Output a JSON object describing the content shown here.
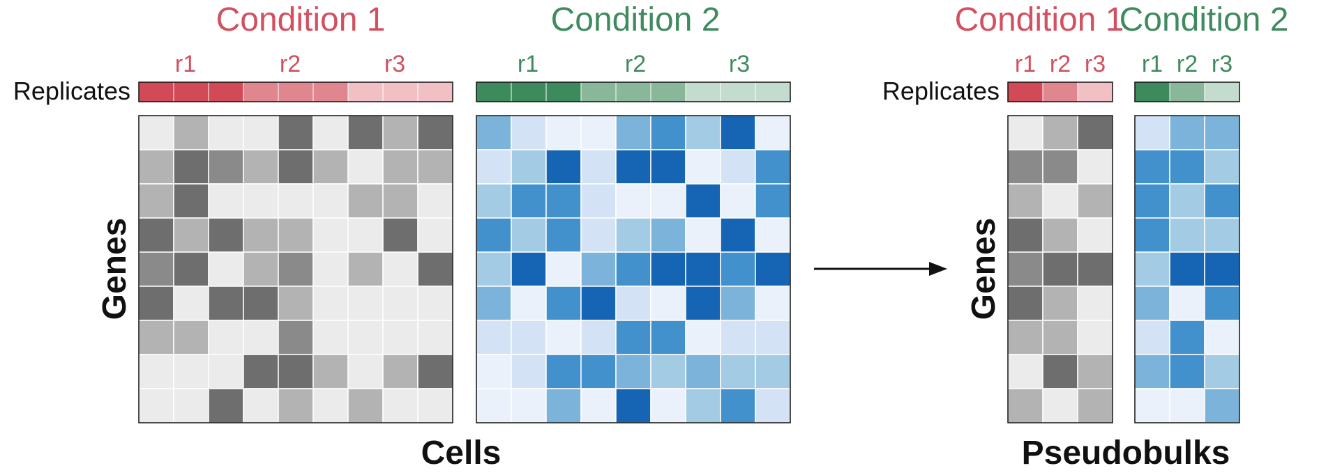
{
  "colors": {
    "condition1": "#d2505f",
    "condition2": "#3f8a5f",
    "arrow": "#111111",
    "border": "#111111",
    "grid": "#ffffff"
  },
  "palettes": {
    "gray": [
      "#ebebeb",
      "#b3b3b3",
      "#8a8a8a",
      "#6e6e6e"
    ],
    "blue": [
      "#eaf1fb",
      "#d3e2f4",
      "#a3cce4",
      "#7cb3da",
      "#4290cc",
      "#1565b4"
    ],
    "rep1": [
      "#d24a57",
      "#e0868f",
      "#f0c0c5"
    ],
    "rep2": [
      "#3d8a5d",
      "#88b79a",
      "#c3dccd"
    ]
  },
  "cells_panel": {
    "condition1": {
      "title": "Condition 1",
      "replicate_labels": [
        "r1",
        "r2",
        "r3"
      ],
      "replicate_bar": [
        0,
        0,
        0,
        1,
        1,
        1,
        2,
        2,
        2
      ],
      "matrix": [
        [
          0,
          1,
          0,
          0,
          3,
          0,
          3,
          1,
          3
        ],
        [
          1,
          3,
          2,
          1,
          3,
          1,
          0,
          1,
          1
        ],
        [
          1,
          3,
          0,
          0,
          0,
          0,
          1,
          1,
          0
        ],
        [
          3,
          1,
          3,
          1,
          1,
          0,
          0,
          3,
          0
        ],
        [
          2,
          3,
          0,
          1,
          2,
          0,
          1,
          0,
          3
        ],
        [
          3,
          0,
          3,
          3,
          1,
          0,
          0,
          0,
          0
        ],
        [
          1,
          1,
          0,
          0,
          2,
          0,
          0,
          0,
          0
        ],
        [
          0,
          0,
          0,
          3,
          3,
          1,
          0,
          1,
          3
        ],
        [
          0,
          0,
          3,
          0,
          1,
          0,
          1,
          0,
          0
        ]
      ]
    },
    "condition2": {
      "title": "Condition 2",
      "replicate_labels": [
        "r1",
        "r2",
        "r3"
      ],
      "replicate_bar": [
        0,
        0,
        0,
        1,
        1,
        1,
        2,
        2,
        2
      ],
      "matrix": [
        [
          3,
          1,
          0,
          0,
          3,
          4,
          2,
          5,
          0
        ],
        [
          1,
          2,
          5,
          1,
          5,
          5,
          0,
          1,
          4
        ],
        [
          2,
          4,
          4,
          1,
          0,
          0,
          5,
          0,
          4
        ],
        [
          4,
          2,
          4,
          1,
          2,
          3,
          0,
          5,
          0
        ],
        [
          2,
          5,
          0,
          3,
          4,
          5,
          5,
          4,
          5
        ],
        [
          3,
          0,
          4,
          5,
          1,
          0,
          5,
          3,
          0
        ],
        [
          1,
          1,
          0,
          1,
          4,
          4,
          0,
          1,
          1
        ],
        [
          0,
          1,
          4,
          4,
          3,
          2,
          3,
          2,
          2
        ],
        [
          0,
          0,
          3,
          0,
          5,
          0,
          2,
          4,
          1
        ]
      ]
    },
    "row_label": "Genes",
    "column_label": "Cells",
    "replicates_label": "Replicates"
  },
  "pseudobulk_panel": {
    "condition1": {
      "title": "Condition 1",
      "replicate_labels": [
        "r1",
        "r2",
        "r3"
      ],
      "replicate_bar": [
        0,
        1,
        2
      ],
      "matrix": [
        [
          0,
          1,
          3
        ],
        [
          2,
          2,
          0
        ],
        [
          1,
          0,
          1
        ],
        [
          3,
          1,
          0
        ],
        [
          2,
          3,
          3
        ],
        [
          3,
          1,
          0
        ],
        [
          1,
          1,
          0
        ],
        [
          0,
          3,
          1
        ],
        [
          1,
          0,
          1
        ]
      ]
    },
    "condition2": {
      "title": "Condition 2",
      "replicate_labels": [
        "r1",
        "r2",
        "r3"
      ],
      "replicate_bar": [
        0,
        1,
        2
      ],
      "matrix": [
        [
          1,
          3,
          3
        ],
        [
          4,
          4,
          2
        ],
        [
          4,
          2,
          4
        ],
        [
          4,
          2,
          2
        ],
        [
          2,
          5,
          5
        ],
        [
          3,
          0,
          4
        ],
        [
          1,
          4,
          0
        ],
        [
          3,
          4,
          2
        ],
        [
          0,
          0,
          3
        ]
      ]
    },
    "row_label": "Genes",
    "column_label": "Pseudobulks",
    "replicates_label": "Replicates"
  }
}
